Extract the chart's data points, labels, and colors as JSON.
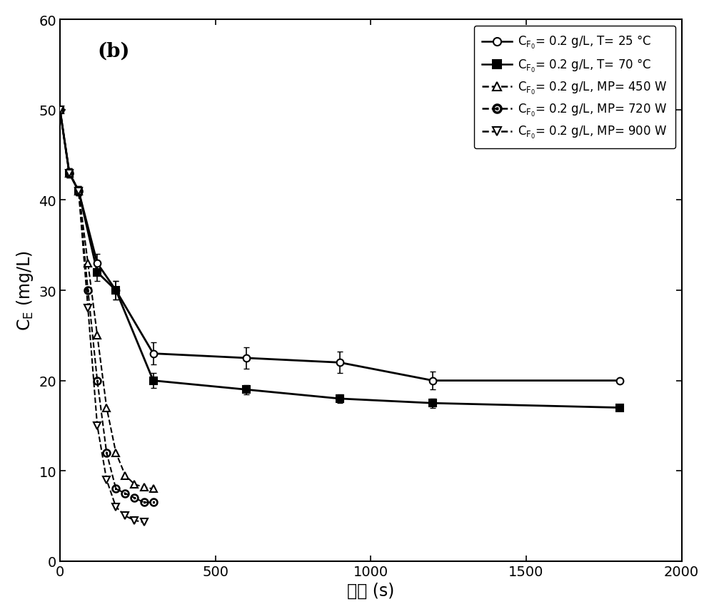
{
  "title_label": "(b)",
  "xlabel": "时间 (s)",
  "ylim": [
    0,
    60
  ],
  "xlim": [
    0,
    2000
  ],
  "xticks": [
    0,
    500,
    1000,
    1500,
    2000
  ],
  "yticks": [
    0,
    10,
    20,
    30,
    40,
    50,
    60
  ],
  "series": [
    {
      "x": [
        0,
        30,
        60,
        120,
        180,
        300,
        600,
        900,
        1200,
        1800
      ],
      "y": [
        50,
        43,
        41,
        33,
        30,
        23,
        22.5,
        22,
        20,
        20
      ],
      "yerr": [
        0,
        0.5,
        0.5,
        1.0,
        1.0,
        1.2,
        1.2,
        1.2,
        1.0,
        0
      ],
      "color": "#000000",
      "linestyle": "-",
      "marker": "o",
      "markerfacecolor": "#ffffff",
      "markersize": 7,
      "linewidth": 2.0
    },
    {
      "x": [
        0,
        30,
        60,
        120,
        180,
        300,
        600,
        900,
        1200,
        1800
      ],
      "y": [
        50,
        43,
        41,
        32,
        30,
        20,
        19,
        18,
        17.5,
        17
      ],
      "yerr": [
        0,
        0.5,
        0.5,
        1.0,
        1.0,
        0.8,
        0.5,
        0.5,
        0.5,
        0
      ],
      "color": "#000000",
      "linestyle": "-",
      "marker": "s",
      "markerfacecolor": "#000000",
      "markersize": 7,
      "linewidth": 2.0
    },
    {
      "x": [
        0,
        30,
        60,
        90,
        120,
        150,
        180,
        210,
        240,
        270,
        300
      ],
      "y": [
        50,
        43,
        41,
        33,
        25,
        17,
        12,
        9.5,
        8.5,
        8.2,
        8.0
      ],
      "yerr": [
        0,
        0,
        0,
        0,
        0,
        0,
        0,
        0,
        0,
        0,
        0
      ],
      "color": "#000000",
      "linestyle": "--",
      "marker": "^",
      "markerfacecolor": "#ffffff",
      "markersize": 7,
      "linewidth": 1.5
    },
    {
      "x": [
        0,
        30,
        60,
        90,
        120,
        150,
        180,
        210,
        240,
        270,
        300
      ],
      "y": [
        50,
        43,
        41,
        30,
        20,
        12,
        8,
        7.5,
        7.0,
        6.5,
        6.5
      ],
      "yerr": [
        0,
        0,
        0,
        0,
        0,
        0,
        0,
        0,
        0,
        0,
        0
      ],
      "color": "#000000",
      "linestyle": "--",
      "marker": "o",
      "markerfacecolor": "#ffffff",
      "markersize": 7,
      "linewidth": 1.5,
      "hollow_circle": true
    },
    {
      "x": [
        0,
        30,
        60,
        90,
        120,
        150,
        180,
        210,
        240,
        270
      ],
      "y": [
        50,
        43,
        41,
        28,
        15,
        9,
        6,
        5,
        4.5,
        4.3
      ],
      "yerr": [
        0,
        0,
        0,
        0,
        0,
        0,
        0,
        0,
        0,
        0
      ],
      "color": "#000000",
      "linestyle": "--",
      "marker": "v",
      "markerfacecolor": "#ffffff",
      "markersize": 7,
      "linewidth": 1.5
    }
  ],
  "legend_labels": [
    "$C_{F_0}$= 0.2 g/L, $T$= 25 °C",
    "$C_{F_0}$= 0.2 g/L, $T$= 70 °C",
    "$C_{F_0}$= 0.2 g/L, $MP$= 450 W",
    "$C_{F_0}$= 0.2 g/L, $MP$= 720 W",
    "$C_{F_0}$= 0.2 g/L, $MP$= 900 W"
  ],
  "background_color": "#ffffff",
  "fontsize_labels": 17,
  "fontsize_ticks": 14,
  "fontsize_legend": 12
}
